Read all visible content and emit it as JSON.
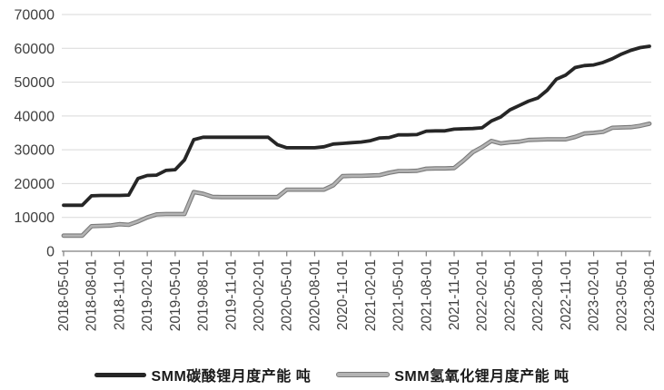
{
  "chart_data": {
    "type": "line",
    "title": "",
    "xlabel": "",
    "ylabel": "",
    "grid": "horizontal",
    "legend_position": "bottom",
    "ylim": [
      0,
      70000
    ],
    "y_ticks": [
      0,
      10000,
      20000,
      30000,
      40000,
      50000,
      60000,
      70000
    ],
    "x_label_every_n_points": 3,
    "x_tick_labels": [
      "2018-05-01",
      "2018-08-01",
      "2018-11-01",
      "2019-02-01",
      "2019-05-01",
      "2019-08-01",
      "2019-11-01",
      "2020-02-01",
      "2020-05-01",
      "2020-08-01",
      "2020-11-01",
      "2021-02-01",
      "2021-05-01",
      "2021-08-01",
      "2021-11-01",
      "2022-02-01",
      "2022-05-01",
      "2022-08-01",
      "2022-11-01",
      "2023-02-01",
      "2023-05-01",
      "2023-08-01"
    ],
    "series": [
      {
        "name": "SMM碳酸锂月度产能 吨",
        "color": "#262626",
        "values": [
          13600,
          13600,
          13600,
          16400,
          16500,
          16500,
          16500,
          16600,
          21500,
          22400,
          22500,
          23900,
          24100,
          27000,
          33000,
          33700,
          33700,
          33700,
          33700,
          33700,
          33700,
          33700,
          33700,
          31500,
          30600,
          30600,
          30600,
          30600,
          30900,
          31700,
          31900,
          32100,
          32300,
          32700,
          33500,
          33600,
          34400,
          34400,
          34500,
          35500,
          35600,
          35600,
          36100,
          36200,
          36300,
          36500,
          38500,
          39700,
          41800,
          43100,
          44400,
          45300,
          47600,
          50900,
          52100,
          54300,
          54900,
          55100,
          55800,
          56900,
          58300,
          59400,
          60200,
          60600
        ]
      },
      {
        "name": "SMM氢氧化锂月度产能 吨",
        "color": "#b3b3b3",
        "outline_color": "#7a7a7a",
        "values": [
          4600,
          4600,
          4600,
          7400,
          7500,
          7600,
          8000,
          7800,
          8800,
          10000,
          10900,
          11000,
          11000,
          11000,
          17500,
          17000,
          16100,
          16000,
          16000,
          16000,
          16000,
          16000,
          16000,
          16000,
          18200,
          18200,
          18200,
          18200,
          18200,
          19500,
          22200,
          22300,
          22300,
          22400,
          22500,
          23200,
          23700,
          23700,
          23800,
          24400,
          24500,
          24500,
          24600,
          26800,
          29300,
          30800,
          32600,
          31900,
          32200,
          32400,
          32900,
          33000,
          33100,
          33100,
          33100,
          33800,
          34800,
          35000,
          35300,
          36500,
          36600,
          36700,
          37100,
          37700
        ]
      }
    ],
    "axis_colors": {
      "grid": "#d9d9d9",
      "axis_line": "#7f7f7f",
      "tick_label": "#404040"
    }
  }
}
